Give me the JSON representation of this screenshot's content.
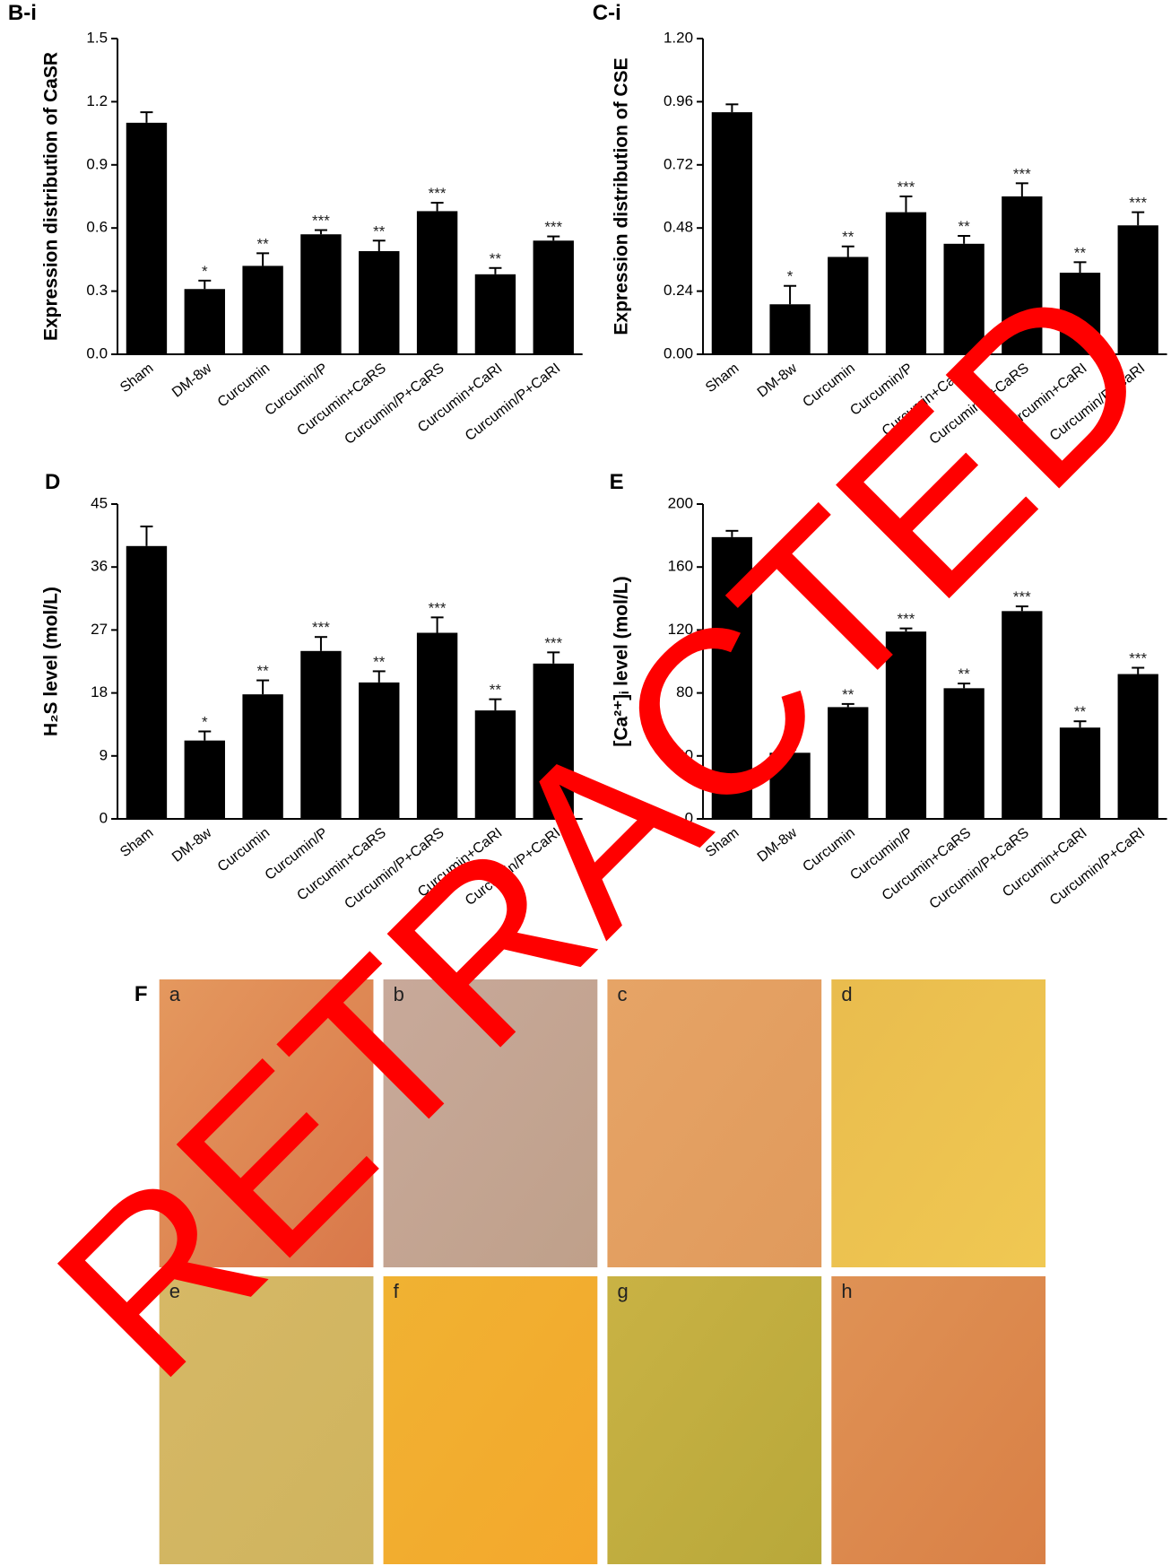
{
  "chart_data": [
    {
      "type": "bar",
      "panel": "B-i",
      "ylabel": "Expression distribution of CaSR",
      "categories": [
        "Sham",
        "DM-8w",
        "Curcumin",
        "Curcumin/P",
        "Curcumin+CaRS",
        "Curcumin/P+CaRS",
        "Curcumin+CaRI",
        "Curcumin/P+CaRI"
      ],
      "values": [
        1.1,
        0.31,
        0.42,
        0.57,
        0.49,
        0.68,
        0.38,
        0.54
      ],
      "errors": [
        0.05,
        0.04,
        0.06,
        0.02,
        0.05,
        0.04,
        0.03,
        0.02
      ],
      "significance": [
        null,
        "*",
        "**",
        "***",
        "**",
        "***",
        "**",
        "***"
      ],
      "color": "#000000",
      "ylim": [
        0,
        1.5
      ],
      "yticks": [
        {
          "value": 0,
          "label": "0.0"
        },
        0.3,
        0.6,
        0.9,
        1.2,
        1.5
      ]
    },
    {
      "type": "bar",
      "panel": "C-i",
      "ylabel": "Expression distribution of CSE",
      "categories": [
        "Sham",
        "DM-8w",
        "Curcumin",
        "Curcumin/P",
        "Curcumin+CaRS",
        "Curcumin/P+CaRS",
        "Curcumin+CaRI",
        "Curcumin/P+CaRI"
      ],
      "values": [
        0.92,
        0.19,
        0.37,
        0.54,
        0.42,
        0.6,
        0.31,
        0.49
      ],
      "errors": [
        0.03,
        0.07,
        0.04,
        0.06,
        0.03,
        0.05,
        0.04,
        0.05
      ],
      "significance": [
        null,
        "*",
        "**",
        "***",
        "**",
        "***",
        "**",
        "***"
      ],
      "color": "#000000",
      "ylim": [
        0,
        1.2
      ],
      "yticks": [
        {
          "value": 0,
          "label": "0.00"
        },
        0.24,
        0.48,
        0.72,
        0.96,
        {
          "value": 1.2,
          "label": "1.20"
        }
      ]
    },
    {
      "type": "bar",
      "panel": "D",
      "ylabel": "H₂S level (mol/L)",
      "categories": [
        "Sham",
        "DM-8w",
        "Curcumin",
        "Curcumin/P",
        "Curcumin+CaRS",
        "Curcumin/P+CaRS",
        "Curcumin+CaRI",
        "Curcumin/P+CaRI"
      ],
      "values": [
        39,
        11.2,
        17.8,
        24,
        19.5,
        26.6,
        15.5,
        22.2
      ],
      "errors": [
        2.8,
        1.3,
        2,
        2,
        1.6,
        2.2,
        1.6,
        1.6
      ],
      "significance": [
        null,
        "*",
        "**",
        "***",
        "**",
        "***",
        "**",
        "***"
      ],
      "color": "#000000",
      "ylim": [
        0,
        45
      ],
      "yticks": [
        0,
        9,
        18,
        27,
        36,
        45
      ]
    },
    {
      "type": "bar",
      "panel": "E",
      "ylabel": "[Ca²⁺]ᵢ level (mol/L)",
      "categories": [
        "Sham",
        "DM-8w",
        "Curcumin",
        "Curcumin/P",
        "Curcumin+CaRS",
        "Curcumin/P+CaRS",
        "Curcumin+CaRI",
        "Curcumin/P+CaRI"
      ],
      "values": [
        179,
        42,
        71,
        119,
        83,
        132,
        58,
        92
      ],
      "errors": [
        4,
        2,
        2,
        2,
        3,
        3,
        4,
        4
      ],
      "significance": [
        null,
        "*",
        "**",
        "***",
        "**",
        "***",
        "**",
        "***"
      ],
      "color": "#000000",
      "ylim": [
        0,
        200
      ],
      "yticks": [
        0,
        40,
        80,
        120,
        160,
        200
      ]
    }
  ],
  "figure_f": {
    "label": "F",
    "images": [
      "a",
      "b",
      "c",
      "d",
      "e",
      "f",
      "g",
      "h"
    ]
  },
  "watermark": "RETRACTED"
}
